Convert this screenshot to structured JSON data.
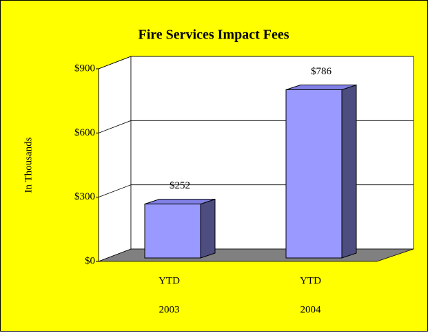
{
  "chart_data": {
    "type": "bar3d",
    "title": "Fire Services Impact Fees",
    "ylabel": "In Thousands",
    "categories": [
      [
        "YTD",
        "2003"
      ],
      [
        "YTD",
        "2004"
      ]
    ],
    "values": [
      252,
      786
    ],
    "value_labels": [
      "$252",
      "$786"
    ],
    "color": "#9999ff",
    "ylim": [
      0,
      900
    ],
    "yticks": [
      {
        "value": 0,
        "label": "$0"
      },
      {
        "value": 300,
        "label": "$300"
      },
      {
        "value": 600,
        "label": "$600"
      },
      {
        "value": 900,
        "label": "$900"
      }
    ],
    "grid": true
  }
}
